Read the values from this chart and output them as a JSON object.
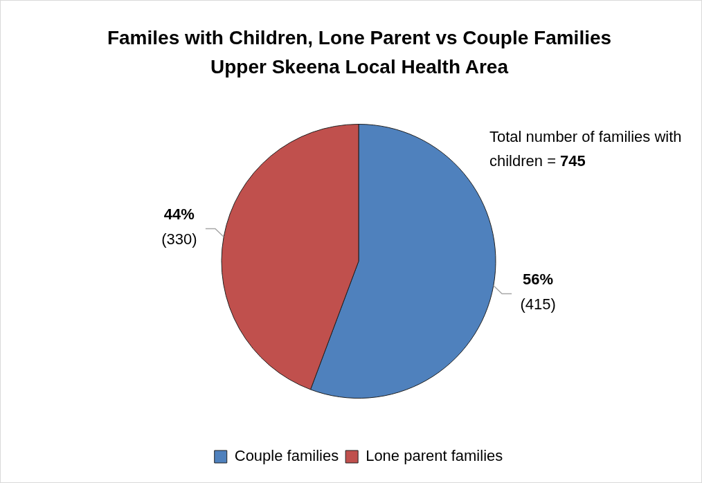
{
  "chart_data": {
    "type": "pie",
    "title": "Familes with Children, Lone Parent vs Couple Families",
    "subtitle": "Upper Skeena Local Health Area",
    "categories": [
      "Couple families",
      "Lone parent families"
    ],
    "values": [
      415,
      330
    ],
    "colors": [
      "#4f81bd",
      "#c0504d"
    ],
    "value_labels": [
      "56%\n(415)",
      "44%\n(330)"
    ],
    "annotations": [
      "Total number of families with children = 745"
    ],
    "legend": "bottom"
  }
}
